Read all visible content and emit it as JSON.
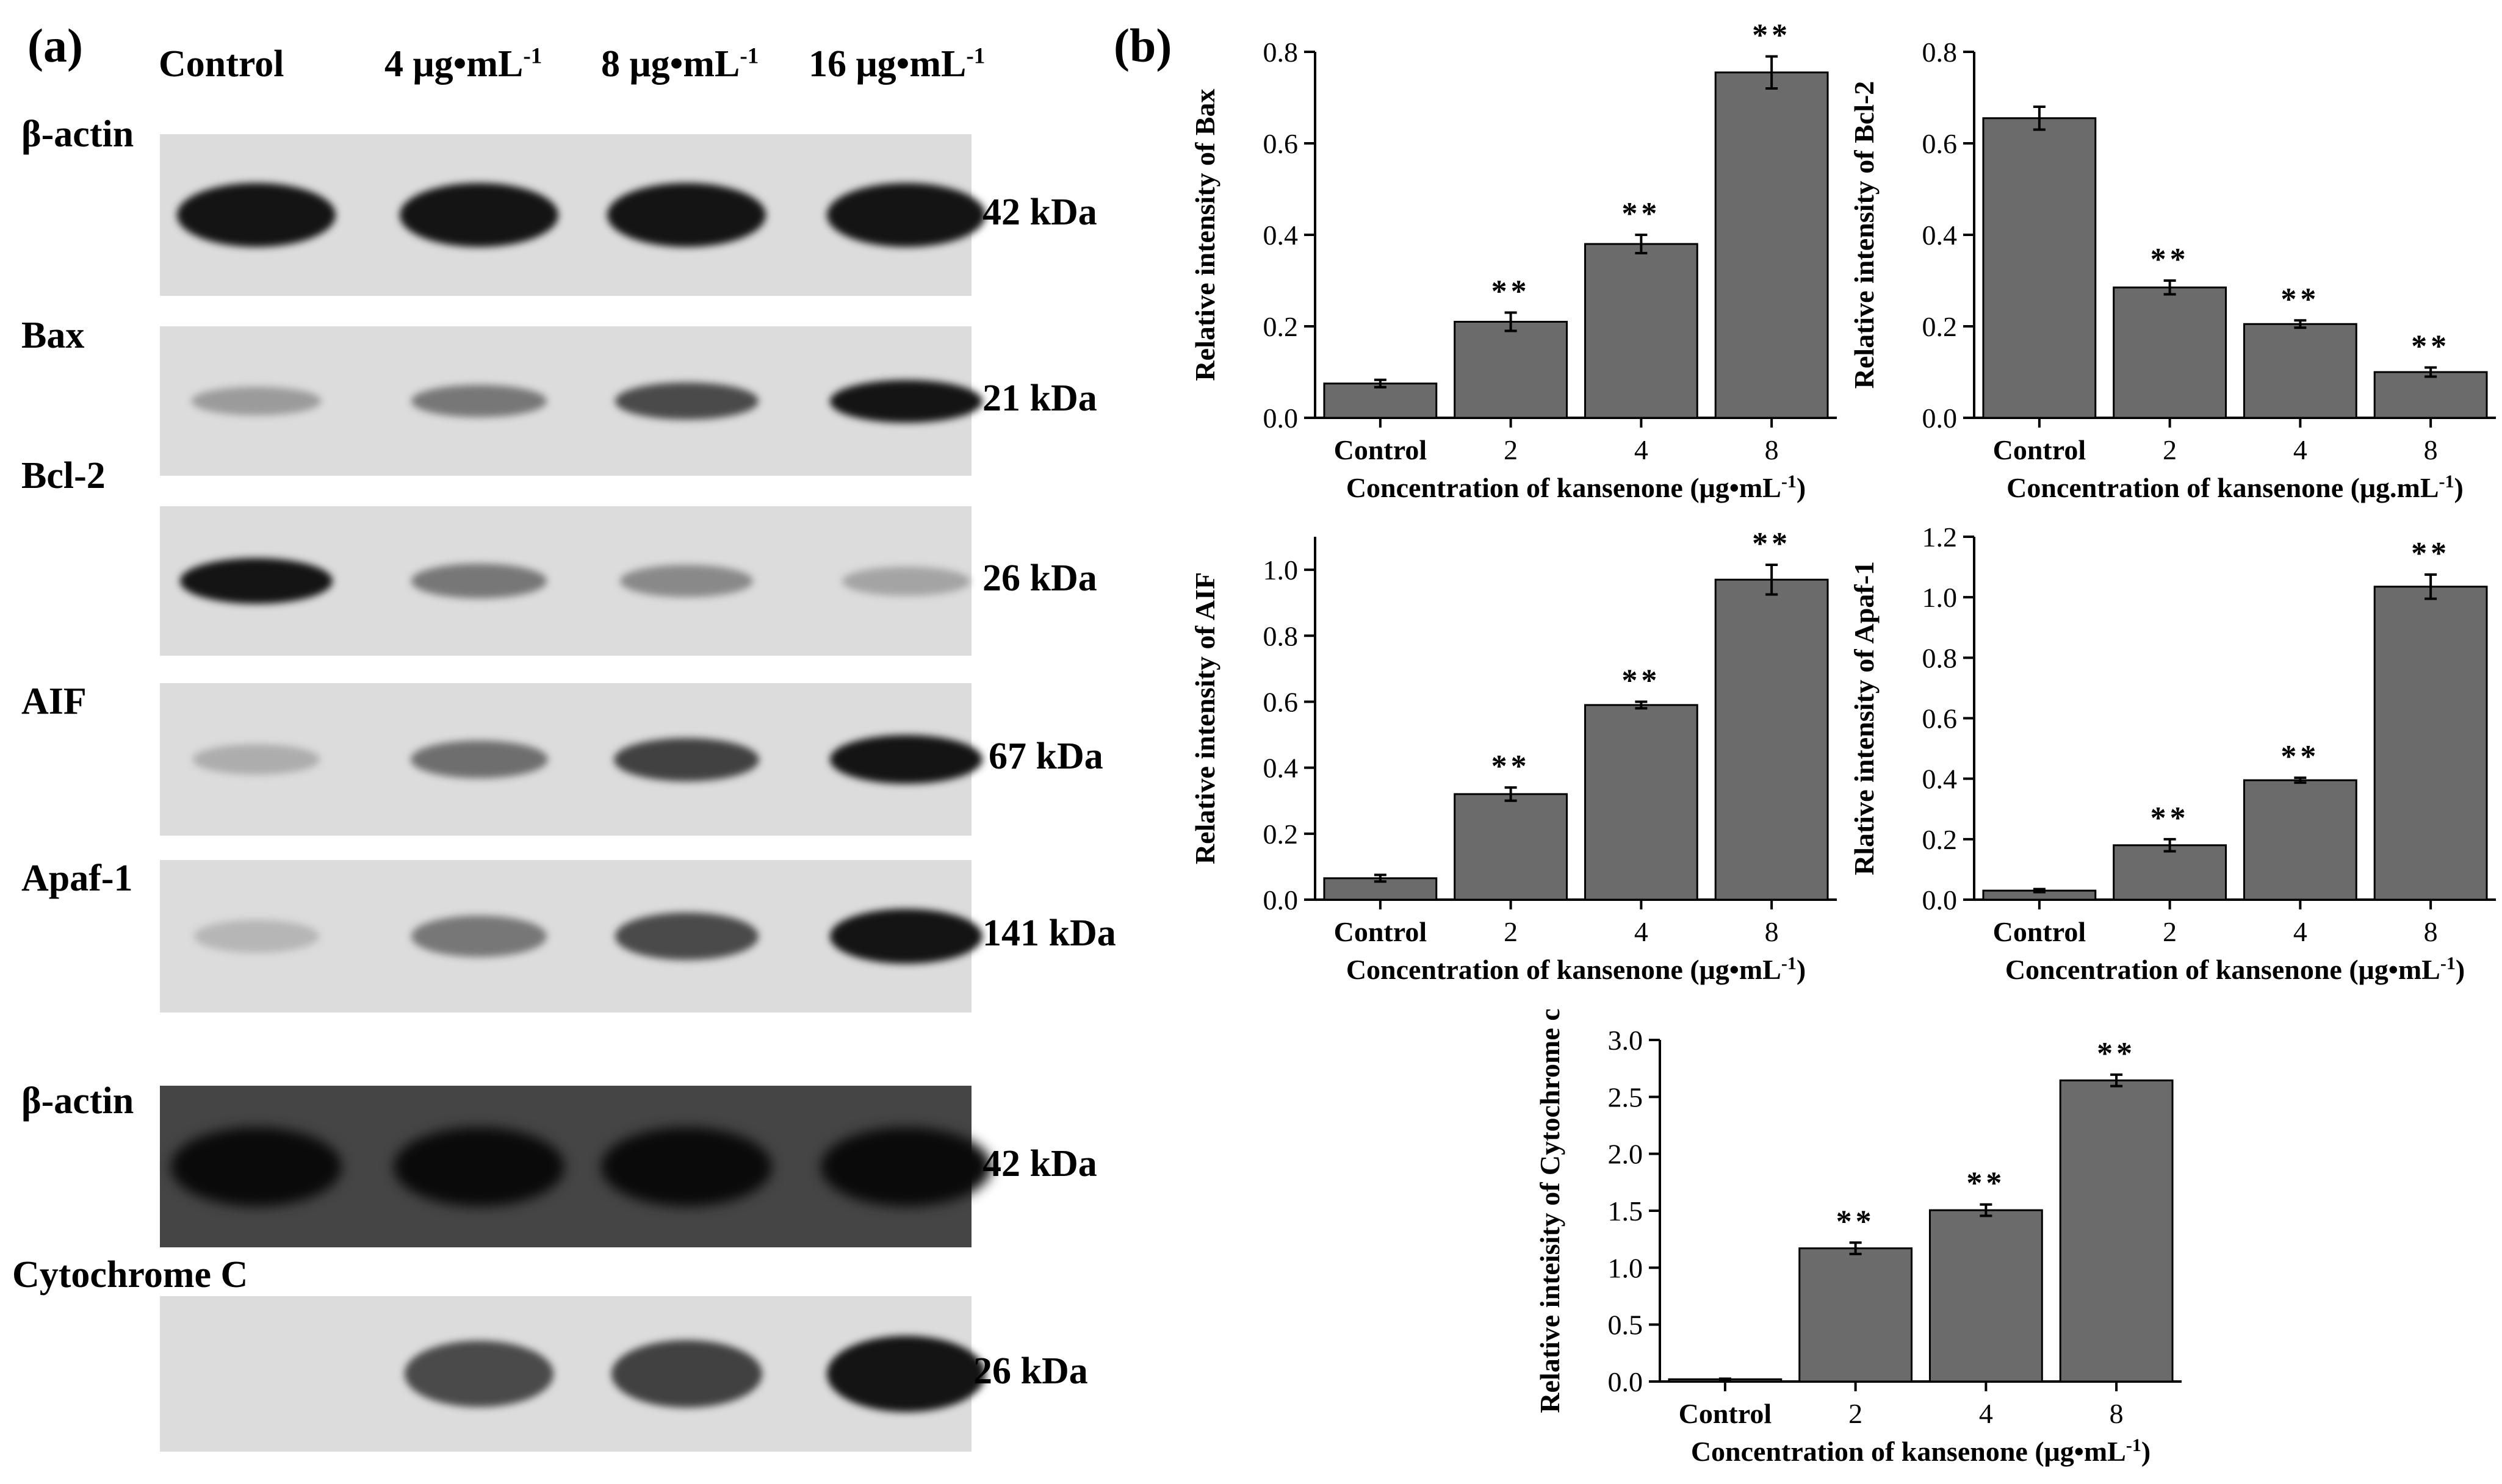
{
  "panel_a": {
    "label": "(a)",
    "lanes": [
      {
        "label": "Control",
        "sup": ""
      },
      {
        "label": "4 μg•mL",
        "sup": "-1"
      },
      {
        "label": "8 μg•mL",
        "sup": "-1"
      },
      {
        "label": "16 μg•mL",
        "sup": "-1"
      }
    ],
    "blots": [
      {
        "protein": "β-actin",
        "kda": "42 kDa",
        "intensity": [
          1.0,
          1.0,
          1.0,
          1.0
        ]
      },
      {
        "protein": "Bax",
        "kda": "21 kDa",
        "intensity": [
          0.25,
          0.45,
          0.7,
          1.0
        ]
      },
      {
        "protein": "Bcl-2",
        "kda": "26 kDa",
        "intensity": [
          1.0,
          0.45,
          0.35,
          0.2
        ]
      },
      {
        "protein": "AIF",
        "kda": "67 kDa",
        "intensity": [
          0.15,
          0.5,
          0.75,
          1.0
        ]
      },
      {
        "protein": "Apaf-1",
        "kda": "141 kDa",
        "intensity": [
          0.1,
          0.45,
          0.7,
          1.0
        ]
      },
      {
        "protein": "β-actin",
        "kda": "42 kDa",
        "intensity": [
          1.0,
          1.0,
          1.0,
          1.0
        ]
      },
      {
        "protein": "Cytochrome C",
        "kda": "26 kDa",
        "intensity": [
          0.0,
          0.7,
          0.75,
          1.0
        ]
      }
    ]
  },
  "panel_b": {
    "label": "(b)"
  },
  "chart_data": [
    {
      "type": "bar",
      "categories": [
        "Control",
        "2",
        "4",
        "8"
      ],
      "values": [
        0.075,
        0.21,
        0.38,
        0.755
      ],
      "errors": [
        0.008,
        0.02,
        0.02,
        0.035
      ],
      "significance": [
        "",
        "**",
        "**",
        "**"
      ],
      "xlabel": "Concentration of kansenone (μg•mL",
      "xlabel_sup": "-1",
      "xlabel_end": ")",
      "ylabel": "Relative intensity of Bax",
      "ylim": [
        0,
        0.8
      ],
      "ticks": [
        0.0,
        0.2,
        0.4,
        0.6,
        0.8
      ]
    },
    {
      "type": "bar",
      "categories": [
        "Control",
        "2",
        "4",
        "8"
      ],
      "values": [
        0.655,
        0.285,
        0.205,
        0.1
      ],
      "errors": [
        0.025,
        0.015,
        0.008,
        0.01
      ],
      "significance": [
        "",
        "**",
        "**",
        "**"
      ],
      "xlabel": "Concentration of kansenone (μg.mL",
      "xlabel_sup": "-1",
      "xlabel_end": ")",
      "ylabel": "Relative intensity of Bcl-2",
      "ylim": [
        0,
        0.8
      ],
      "ticks": [
        0.0,
        0.2,
        0.4,
        0.6,
        0.8
      ]
    },
    {
      "type": "bar",
      "categories": [
        "Control",
        "2",
        "4",
        "8"
      ],
      "values": [
        0.065,
        0.32,
        0.59,
        0.97
      ],
      "errors": [
        0.01,
        0.02,
        0.01,
        0.045
      ],
      "significance": [
        "",
        "**",
        "**",
        "**"
      ],
      "xlabel": "Concentration of kansenone (μg•mL",
      "xlabel_sup": "-1",
      "xlabel_end": ")",
      "ylabel": "Relative intensity of AIF",
      "ylim": [
        0,
        1.1
      ],
      "ticks": [
        0.0,
        0.2,
        0.4,
        0.6,
        0.8,
        1.0
      ]
    },
    {
      "type": "bar",
      "categories": [
        "Control",
        "2",
        "4",
        "8"
      ],
      "values": [
        0.03,
        0.18,
        0.395,
        1.035
      ],
      "errors": [
        0.005,
        0.02,
        0.008,
        0.04
      ],
      "significance": [
        "",
        "**",
        "**",
        "**"
      ],
      "xlabel": "Concentration of kansenone (μg•mL",
      "xlabel_sup": "-1",
      "xlabel_end": ")",
      "ylabel": "Rlative intensity of Apaf-1",
      "ylim": [
        0,
        1.2
      ],
      "ticks": [
        0.0,
        0.2,
        0.4,
        0.6,
        0.8,
        1.0,
        1.2
      ]
    },
    {
      "type": "bar",
      "categories": [
        "Control",
        "2",
        "4",
        "8"
      ],
      "values": [
        0.02,
        1.17,
        1.505,
        2.645
      ],
      "errors": [
        0.005,
        0.05,
        0.05,
        0.05
      ],
      "significance": [
        "",
        "**",
        "**",
        "**"
      ],
      "xlabel": "Concentration of kansenone (μg•mL",
      "xlabel_sup": "-1",
      "xlabel_end": ")",
      "ylabel": "Relative inteisity of Cytochrome c",
      "ylim": [
        0,
        3.0
      ],
      "ticks": [
        0.0,
        0.5,
        1.0,
        1.5,
        2.0,
        2.5,
        3.0
      ]
    }
  ]
}
